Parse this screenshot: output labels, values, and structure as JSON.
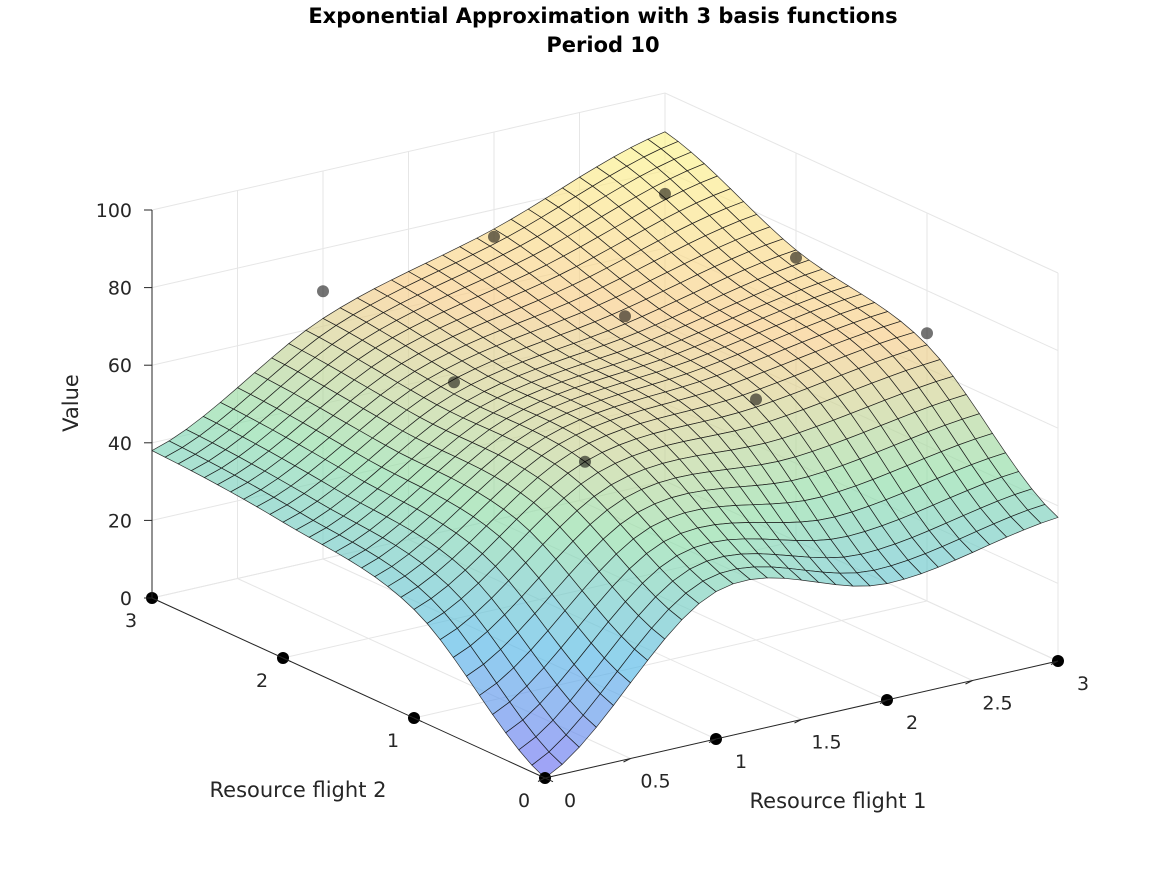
{
  "chart_data": {
    "type": "surface",
    "title": "Exponential Approximation with 3 basis functions",
    "subtitle": "Period 10",
    "xlabel": "Resource flight 1",
    "ylabel": "Resource flight 2",
    "zlabel": "Value",
    "xlim": [
      0,
      3
    ],
    "ylim": [
      0,
      3
    ],
    "zlim": [
      0,
      100
    ],
    "x_ticks": [
      "0",
      "0.5",
      "1",
      "1.5",
      "2",
      "2.5",
      "3"
    ],
    "y_ticks": [
      "0",
      "1",
      "2",
      "3"
    ],
    "z_ticks": [
      "0",
      "20",
      "40",
      "60",
      "80",
      "100"
    ],
    "grid": true,
    "colormap": [
      "#6f6cf2",
      "#54b8e6",
      "#8ddca6",
      "#f8cc86",
      "#fbf58a"
    ],
    "surface_alpha": 0.65,
    "marker_color": "#000000",
    "sample_points": [
      {
        "x": 0,
        "y": 0,
        "value": 0
      },
      {
        "x": 1,
        "y": 0,
        "value": 0
      },
      {
        "x": 2,
        "y": 0,
        "value": 0
      },
      {
        "x": 3,
        "y": 0,
        "value": 0
      },
      {
        "x": 0,
        "y": 1,
        "value": 0
      },
      {
        "x": 0,
        "y": 2,
        "value": 0
      },
      {
        "x": 0,
        "y": 3,
        "value": 0
      },
      {
        "x": 1,
        "y": 1,
        "value": 56
      },
      {
        "x": 2,
        "y": 1,
        "value": 62
      },
      {
        "x": 3,
        "y": 1,
        "value": 69
      },
      {
        "x": 1,
        "y": 2,
        "value": 61
      },
      {
        "x": 2,
        "y": 2,
        "value": 68
      },
      {
        "x": 3,
        "y": 2,
        "value": 73
      },
      {
        "x": 1,
        "y": 3,
        "value": 69
      },
      {
        "x": 2,
        "y": 3,
        "value": 73
      },
      {
        "x": 3,
        "y": 3,
        "value": 74
      }
    ],
    "surface_values": {
      "x": [
        0,
        1,
        2,
        3
      ],
      "y": [
        0,
        1,
        2,
        3
      ],
      "z_rows_by_y": [
        [
          0,
          38,
          30,
          37
        ],
        [
          28,
          56,
          60,
          66
        ],
        [
          35,
          58,
          66,
          75
        ],
        [
          38,
          62,
          75,
          90
        ]
      ]
    }
  }
}
